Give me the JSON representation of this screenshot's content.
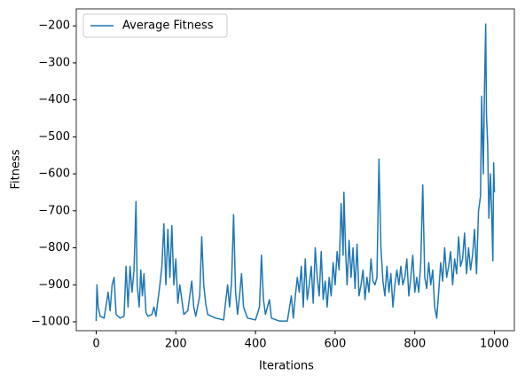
{
  "chart_data": {
    "type": "line",
    "xlabel": "Iterations",
    "ylabel": "Fitness",
    "legend": "upper left",
    "xlim": [
      -50,
      1050
    ],
    "ylim": [
      -1024,
      -154
    ],
    "xticks": [
      0,
      200,
      400,
      600,
      800,
      1000
    ],
    "yticks": [
      {
        "value": -1000,
        "label": "−1000"
      },
      {
        "value": -900,
        "label": "−900"
      },
      {
        "value": -800,
        "label": "−800"
      },
      {
        "value": -700,
        "label": "−700"
      },
      {
        "value": -600,
        "label": "−600"
      },
      {
        "value": -500,
        "label": "−500"
      },
      {
        "value": -400,
        "label": "−400"
      },
      {
        "value": -300,
        "label": "−300"
      },
      {
        "value": -200,
        "label": "−200"
      }
    ],
    "x": [
      0,
      2,
      5,
      10,
      20,
      30,
      35,
      40,
      45,
      50,
      60,
      70,
      75,
      80,
      85,
      90,
      95,
      100,
      103,
      108,
      112,
      116,
      120,
      125,
      130,
      140,
      145,
      150,
      160,
      165,
      170,
      175,
      180,
      185,
      190,
      195,
      200,
      205,
      210,
      220,
      230,
      240,
      245,
      250,
      260,
      265,
      270,
      275,
      280,
      300,
      320,
      330,
      335,
      340,
      345,
      350,
      355,
      360,
      365,
      370,
      380,
      400,
      410,
      415,
      420,
      425,
      430,
      435,
      440,
      460,
      480,
      490,
      495,
      500,
      505,
      510,
      515,
      520,
      525,
      530,
      535,
      540,
      545,
      550,
      555,
      560,
      565,
      570,
      575,
      580,
      585,
      590,
      595,
      600,
      605,
      610,
      615,
      620,
      622,
      626,
      630,
      635,
      640,
      645,
      650,
      655,
      660,
      665,
      670,
      675,
      680,
      685,
      690,
      695,
      700,
      705,
      710,
      715,
      720,
      725,
      730,
      735,
      740,
      745,
      750,
      755,
      760,
      765,
      770,
      775,
      780,
      785,
      790,
      795,
      800,
      805,
      810,
      815,
      820,
      825,
      830,
      835,
      840,
      845,
      850,
      855,
      860,
      865,
      870,
      875,
      880,
      885,
      890,
      895,
      900,
      905,
      910,
      915,
      920,
      925,
      930,
      935,
      940,
      945,
      950,
      955,
      960,
      965,
      968,
      970,
      972,
      975,
      978,
      980,
      983,
      986,
      990,
      993,
      996,
      998,
      1000
    ],
    "series": [
      {
        "name": "Average Fitness",
        "color": "#1f77b4",
        "values": [
          -998,
          -900,
          -960,
          -985,
          -990,
          -920,
          -970,
          -900,
          -880,
          -980,
          -990,
          -985,
          -850,
          -960,
          -850,
          -920,
          -860,
          -675,
          -900,
          -960,
          -860,
          -930,
          -870,
          -975,
          -985,
          -980,
          -960,
          -985,
          -900,
          -850,
          -735,
          -900,
          -750,
          -880,
          -740,
          -900,
          -830,
          -950,
          -900,
          -980,
          -970,
          -890,
          -960,
          -985,
          -930,
          -770,
          -900,
          -950,
          -980,
          -990,
          -995,
          -900,
          -960,
          -890,
          -710,
          -920,
          -980,
          -930,
          -870,
          -960,
          -990,
          -995,
          -960,
          -820,
          -940,
          -980,
          -960,
          -940,
          -990,
          -998,
          -998,
          -930,
          -990,
          -930,
          -880,
          -920,
          -850,
          -960,
          -830,
          -940,
          -900,
          -850,
          -950,
          -800,
          -880,
          -930,
          -810,
          -940,
          -890,
          -960,
          -880,
          -930,
          -840,
          -900,
          -810,
          -860,
          -680,
          -820,
          -650,
          -800,
          -900,
          -780,
          -880,
          -800,
          -910,
          -790,
          -930,
          -900,
          -860,
          -940,
          -880,
          -920,
          -830,
          -890,
          -900,
          -880,
          -560,
          -800,
          -890,
          -930,
          -850,
          -920,
          -870,
          -960,
          -900,
          -860,
          -900,
          -850,
          -900,
          -880,
          -830,
          -930,
          -880,
          -820,
          -920,
          -880,
          -920,
          -840,
          -630,
          -880,
          -910,
          -840,
          -900,
          -860,
          -960,
          -990,
          -920,
          -840,
          -890,
          -800,
          -880,
          -850,
          -810,
          -900,
          -830,
          -870,
          -770,
          -850,
          -830,
          -760,
          -870,
          -800,
          -860,
          -820,
          -750,
          -870,
          -700,
          -660,
          -390,
          -500,
          -600,
          -370,
          -195,
          -440,
          -520,
          -720,
          -600,
          -700,
          -835,
          -570,
          -650
        ]
      }
    ]
  }
}
